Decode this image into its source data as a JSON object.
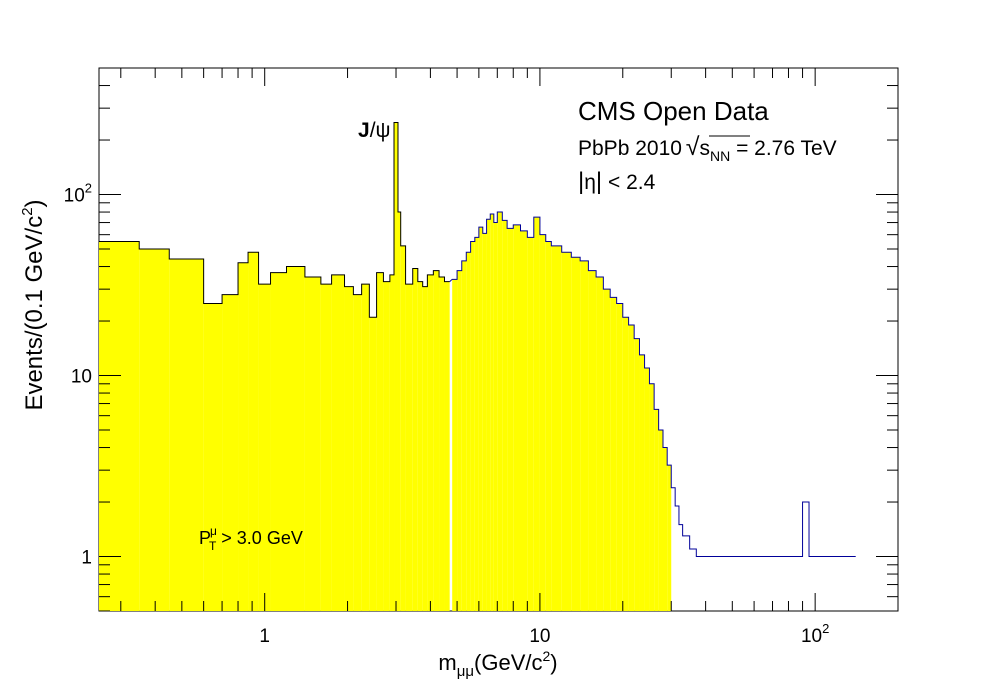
{
  "chart_data": {
    "type": "histogram",
    "x_scale": "log",
    "y_scale": "log",
    "xlim": [
      0.25,
      200
    ],
    "ylim": [
      0.5,
      500
    ],
    "xlabel_main": "m",
    "xlabel_sub": "μμ",
    "xlabel_unit_pre": "(GeV/c",
    "xlabel_unit_sup": "2",
    "xlabel_unit_post": ")",
    "ylabel_main": "Events/(0.1 GeV/c",
    "ylabel_sup": "2",
    "ylabel_post": ")",
    "x_ticks": [
      {
        "value": 1,
        "label": "1",
        "exp": ""
      },
      {
        "value": 10,
        "label": "10",
        "exp": ""
      },
      {
        "value": 100,
        "label": "10",
        "exp": "2"
      }
    ],
    "y_ticks": [
      {
        "value": 1,
        "label": "1",
        "exp": ""
      },
      {
        "value": 10,
        "label": "10",
        "exp": ""
      },
      {
        "value": 100,
        "label": "10",
        "exp": "2"
      }
    ],
    "annotations": {
      "title": "CMS Open Data",
      "line2_pre": "PbPb 2010 ",
      "line2_sqrt_s": "s",
      "line2_sub": "NN",
      "line2_post": " = 2.76 TeV",
      "line3_eta": "η",
      "line3_post": " < 2.4",
      "peak_label_bold": "J",
      "peak_label_rest": "/ψ",
      "cut_p": "P",
      "cut_sub": "T",
      "cut_sup": "μ",
      "cut_post": " > 3.0 GeV"
    },
    "colors": {
      "fill": "#ffff00",
      "outline_low": "#000000",
      "outline_high": "#000099",
      "frame": "#000000"
    },
    "series": [
      {
        "name": "",
        "description_of_shape": "coarse bins below ~5 GeV/c2, fine bins above",
        "bin_edges_coarse": [
          0.25,
          0.35,
          0.45,
          0.6,
          0.7,
          0.8,
          0.87,
          0.95,
          1.05,
          1.2,
          1.4,
          1.6,
          1.75,
          1.95,
          2.1,
          2.25,
          2.4,
          2.55,
          2.7,
          2.85,
          2.95,
          3.05,
          3.12,
          3.25,
          3.45,
          3.6,
          3.75,
          3.9,
          4.1,
          4.3,
          4.5,
          4.7
        ],
        "counts_coarse": [
          55,
          50,
          44,
          25,
          28,
          42,
          48,
          32,
          37,
          40,
          35,
          32,
          36,
          31,
          28,
          32,
          21,
          37,
          33,
          36,
          250,
          80,
          52,
          32,
          39,
          33,
          31,
          36,
          38,
          35,
          33
        ],
        "fine_points": [
          [
            4.8,
            34
          ],
          [
            5.0,
            38
          ],
          [
            5.2,
            43
          ],
          [
            5.4,
            48
          ],
          [
            5.6,
            55
          ],
          [
            5.8,
            58
          ],
          [
            6.0,
            66
          ],
          [
            6.2,
            61
          ],
          [
            6.4,
            73
          ],
          [
            6.6,
            78
          ],
          [
            6.8,
            70
          ],
          [
            7.0,
            80
          ],
          [
            7.3,
            72
          ],
          [
            7.6,
            65
          ],
          [
            8.0,
            68
          ],
          [
            8.5,
            63
          ],
          [
            9.0,
            58
          ],
          [
            9.5,
            75
          ],
          [
            10,
            60
          ],
          [
            10.5,
            55
          ],
          [
            11,
            52
          ],
          [
            12,
            48
          ],
          [
            13,
            45
          ],
          [
            14,
            43
          ],
          [
            15,
            38
          ],
          [
            16,
            35
          ],
          [
            17,
            30
          ],
          [
            18,
            27
          ],
          [
            19,
            25
          ],
          [
            20,
            21
          ],
          [
            21,
            19
          ],
          [
            22,
            16
          ],
          [
            23,
            13
          ],
          [
            24,
            11
          ],
          [
            25,
            9
          ],
          [
            26,
            6.5
          ],
          [
            27,
            5
          ],
          [
            28,
            4
          ],
          [
            29,
            3.2
          ],
          [
            30,
            2.4
          ],
          [
            31,
            1.9
          ],
          [
            32,
            1.5
          ],
          [
            33,
            1.3
          ],
          [
            35,
            1.1
          ],
          [
            37,
            1.0
          ],
          [
            40,
            1.0
          ],
          [
            45,
            1.0
          ],
          [
            50,
            1.0
          ],
          [
            60,
            1.0
          ],
          [
            70,
            1.0
          ],
          [
            80,
            1.0
          ],
          [
            90,
            2.0
          ],
          [
            95,
            1.0
          ],
          [
            100,
            1.0
          ],
          [
            110,
            1.0
          ],
          [
            120,
            1.0
          ],
          [
            130,
            1.0
          ]
        ]
      }
    ]
  }
}
